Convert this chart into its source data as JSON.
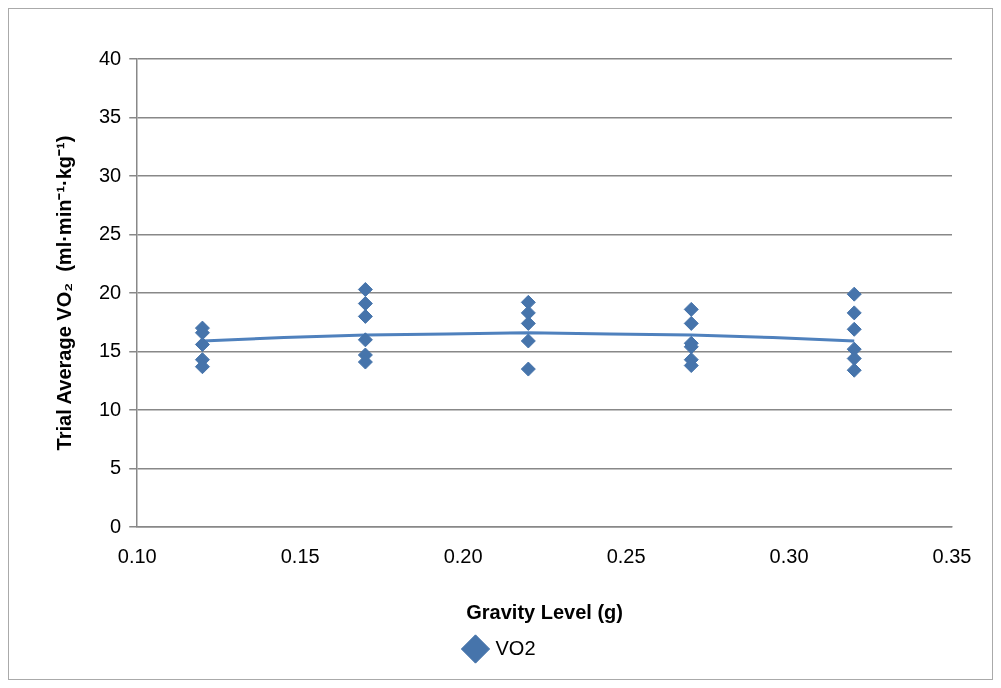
{
  "chart_data": {
    "type": "scatter",
    "xlabel": "Gravity Level (g)",
    "ylabel": "Trial Average VO₂  (ml·min⁻¹·kg⁻¹)",
    "series": [
      {
        "name": "VO2",
        "color": "#4674ab",
        "marker": "diamond",
        "x": [
          0.12,
          0.12,
          0.12,
          0.12,
          0.12,
          0.17,
          0.17,
          0.17,
          0.17,
          0.17,
          0.17,
          0.22,
          0.22,
          0.22,
          0.22,
          0.22,
          0.27,
          0.27,
          0.27,
          0.27,
          0.27,
          0.27,
          0.32,
          0.32,
          0.32,
          0.32,
          0.32,
          0.32
        ],
        "values": [
          17.0,
          16.6,
          15.6,
          14.3,
          13.7,
          20.3,
          19.1,
          18.0,
          16.0,
          14.7,
          14.1,
          19.2,
          18.3,
          17.4,
          15.9,
          13.5,
          18.6,
          17.4,
          15.7,
          15.4,
          14.3,
          13.8,
          19.9,
          18.3,
          16.9,
          15.2,
          14.4,
          13.4
        ]
      },
      {
        "type": "line",
        "color": "#4f81bd",
        "marker": "none",
        "x": [
          0.12,
          0.145,
          0.17,
          0.195,
          0.22,
          0.245,
          0.27,
          0.295,
          0.32
        ],
        "values": [
          15.9,
          16.2,
          16.4,
          16.5,
          16.6,
          16.5,
          16.4,
          16.2,
          15.9
        ]
      }
    ],
    "xlim": [
      0.1,
      0.35
    ],
    "xticks": [
      {
        "value": 0.1,
        "label": "0.10"
      },
      {
        "value": 0.15,
        "label": "0.15"
      },
      {
        "value": 0.2,
        "label": "0.20"
      },
      {
        "value": 0.25,
        "label": "0.25"
      },
      {
        "value": 0.3,
        "label": "0.30"
      },
      {
        "value": 0.35,
        "label": "0.35"
      }
    ],
    "ylim": [
      0,
      40
    ],
    "yticks": [
      0,
      5,
      10,
      15,
      20,
      25,
      30,
      35,
      40
    ],
    "grid": "y",
    "legend": "bottom"
  }
}
